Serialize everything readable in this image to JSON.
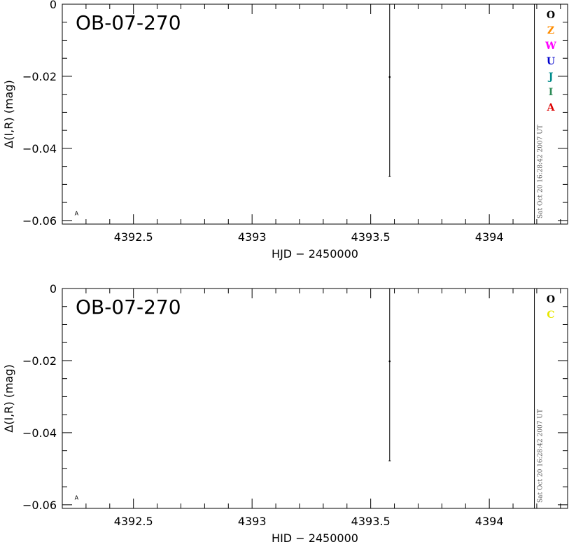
{
  "chart_data": [
    {
      "type": "scatter",
      "title": "OB-07-270",
      "xlabel": "HJD − 2450000",
      "ylabel": "Δ(I,R) (mag)",
      "xlim": [
        4392.2,
        4394.33
      ],
      "ylim": [
        -0.061,
        0
      ],
      "x_ticks": [
        {
          "value": 4392.5,
          "label": "4392.5"
        },
        {
          "value": 4393,
          "label": "4393"
        },
        {
          "value": 4393.5,
          "label": "4393.5"
        },
        {
          "value": 4394,
          "label": "4394"
        }
      ],
      "y_ticks": [
        {
          "value": 0,
          "label": "0"
        },
        {
          "value": -0.02,
          "label": "−0.02"
        },
        {
          "value": -0.04,
          "label": "−0.04"
        },
        {
          "value": -0.06,
          "label": "−0.06"
        }
      ],
      "divider_x": 4394.19,
      "timestamp": "Sat Oct 20 16:28:42 2007 UT",
      "legend": [
        {
          "label": "O",
          "color": "#000000"
        },
        {
          "label": "Z",
          "color": "#ff8c00"
        },
        {
          "label": "W",
          "color": "#ff00ff"
        },
        {
          "label": "U",
          "color": "#0000cd"
        },
        {
          "label": "J",
          "color": "#008b8b"
        },
        {
          "label": "I",
          "color": "#2e8b57"
        },
        {
          "label": "A",
          "color": "#dd0000"
        }
      ],
      "points": [
        {
          "x": 4393.58,
          "y": -0.0202,
          "err_low": -0.0478,
          "err_high": 0,
          "label": ""
        },
        {
          "x": 4392.26,
          "y": -0.058,
          "label": "A"
        }
      ]
    },
    {
      "type": "scatter",
      "title": "OB-07-270",
      "xlabel": "HJD − 2450000",
      "ylabel": "Δ(I,R) (mag)",
      "xlim": [
        4392.2,
        4394.33
      ],
      "ylim": [
        -0.061,
        0
      ],
      "x_ticks": [
        {
          "value": 4392.5,
          "label": "4392.5"
        },
        {
          "value": 4393,
          "label": "4393"
        },
        {
          "value": 4393.5,
          "label": "4393.5"
        },
        {
          "value": 4394,
          "label": "4394"
        }
      ],
      "y_ticks": [
        {
          "value": 0,
          "label": "0"
        },
        {
          "value": -0.02,
          "label": "−0.02"
        },
        {
          "value": -0.04,
          "label": "−0.04"
        },
        {
          "value": -0.06,
          "label": "−0.06"
        }
      ],
      "divider_x": 4394.19,
      "timestamp": "Sat Oct 20 16:28:42 2007 UT",
      "legend": [
        {
          "label": "O",
          "color": "#000000"
        },
        {
          "label": "C",
          "color": "#e8e800"
        }
      ],
      "points": [
        {
          "x": 4393.58,
          "y": -0.0202,
          "err_low": -0.0478,
          "err_high": 0,
          "label": ""
        },
        {
          "x": 4392.26,
          "y": -0.058,
          "label": "A"
        }
      ]
    }
  ]
}
